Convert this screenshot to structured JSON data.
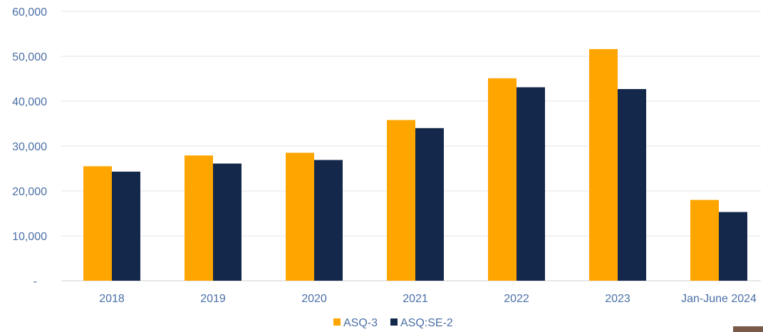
{
  "chart_data": {
    "type": "bar",
    "title": "",
    "xlabel": "",
    "ylabel": "",
    "categories": [
      "2018",
      "2019",
      "2020",
      "2021",
      "2022",
      "2023",
      "Jan-June 2024"
    ],
    "series": [
      {
        "name": "ASQ-3",
        "color": "#FFA500",
        "values": [
          25500,
          27900,
          28500,
          35800,
          45100,
          51600,
          18000
        ]
      },
      {
        "name": "ASQ:SE-2",
        "color": "#14284B",
        "values": [
          24300,
          26100,
          26900,
          34000,
          43100,
          42700,
          15300
        ]
      }
    ],
    "ylim": [
      0,
      60000
    ],
    "yticks": [
      {
        "value": 0,
        "label": "-"
      },
      {
        "value": 10000,
        "label": "10,000"
      },
      {
        "value": 20000,
        "label": "20,000"
      },
      {
        "value": 30000,
        "label": "30,000"
      },
      {
        "value": 40000,
        "label": "40,000"
      },
      {
        "value": 50000,
        "label": "50,000"
      },
      {
        "value": 60000,
        "label": "60,000"
      }
    ],
    "grid": true,
    "legend_position": "bottom-center"
  },
  "colors": {
    "grid": "#e6e6e6",
    "axis_text": "#4a6fa5"
  }
}
